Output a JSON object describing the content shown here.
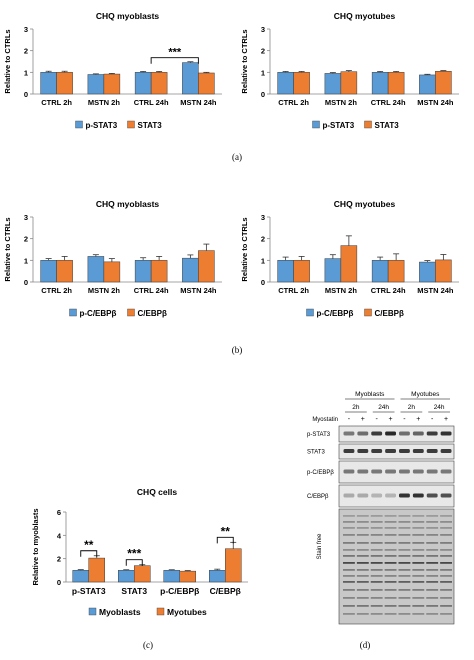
{
  "colors": {
    "blue": "#5B9BD5",
    "orange": "#ED7D31",
    "bar_border": "#3a3a3a",
    "error": "#c55a11"
  },
  "chart_data": [
    {
      "id": "a-left",
      "type": "bar",
      "title": "CHQ myoblasts",
      "ylabel": "Relative to CTRLs",
      "ylim": [
        0,
        3
      ],
      "yticks": [
        0,
        1,
        2,
        3
      ],
      "categories": [
        "CTRL 2h",
        "MSTN 2h",
        "CTRL 24h",
        "MSTN 24h"
      ],
      "series": [
        {
          "name": "p-STAT3",
          "values": [
            1.0,
            0.9,
            1.0,
            1.45
          ],
          "errors": [
            0.05,
            0.03,
            0.04,
            0.04
          ]
        },
        {
          "name": "STAT3",
          "values": [
            1.0,
            0.92,
            1.0,
            0.97
          ],
          "errors": [
            0.05,
            0.03,
            0.04,
            0.03
          ]
        }
      ],
      "annotations": [
        {
          "text": "***",
          "from": 2,
          "to": 3
        }
      ],
      "legend": "bottom"
    },
    {
      "id": "a-right",
      "type": "bar",
      "title": "CHQ myotubes",
      "ylabel": "Relative to CTRLs",
      "ylim": [
        0,
        3
      ],
      "yticks": [
        0,
        1,
        2,
        3
      ],
      "categories": [
        "CTRL 2h",
        "MSTN 2h",
        "CTRL 24h",
        "MSTN 24h"
      ],
      "series": [
        {
          "name": "p-STAT3",
          "values": [
            1.0,
            0.95,
            1.0,
            0.88
          ],
          "errors": [
            0.04,
            0.04,
            0.04,
            0.03
          ]
        },
        {
          "name": "STAT3",
          "values": [
            1.0,
            1.03,
            1.0,
            1.05
          ],
          "errors": [
            0.04,
            0.05,
            0.04,
            0.03
          ]
        }
      ],
      "annotations": [],
      "legend": "bottom"
    },
    {
      "id": "b-left",
      "type": "bar",
      "title": "CHQ myoblasts",
      "ylabel": "Relative to CTRLs",
      "ylim": [
        0,
        3
      ],
      "yticks": [
        0,
        1,
        2,
        3
      ],
      "categories": [
        "CTRL 2h",
        "MSTN 2h",
        "CTRL 24h",
        "MSTN 24h"
      ],
      "series": [
        {
          "name": "p-C/EBPβ",
          "values": [
            1.0,
            1.18,
            1.0,
            1.1
          ],
          "errors": [
            0.08,
            0.08,
            0.12,
            0.15
          ]
        },
        {
          "name": "C/EBPβ",
          "values": [
            1.0,
            0.93,
            1.0,
            1.45
          ],
          "errors": [
            0.18,
            0.15,
            0.18,
            0.3
          ]
        }
      ],
      "annotations": [],
      "legend": "bottom"
    },
    {
      "id": "b-right",
      "type": "bar",
      "title": "CHQ myotubes",
      "ylabel": "Relative to CTRLs",
      "ylim": [
        0,
        3
      ],
      "yticks": [
        0,
        1,
        2,
        3
      ],
      "categories": [
        "CTRL 2h",
        "MSTN 2h",
        "CTRL 24h",
        "MSTN 24h"
      ],
      "series": [
        {
          "name": "p-C/EBPβ",
          "values": [
            1.0,
            1.08,
            1.0,
            0.92
          ],
          "errors": [
            0.15,
            0.18,
            0.15,
            0.07
          ]
        },
        {
          "name": "C/EBPβ",
          "values": [
            1.0,
            1.68,
            1.0,
            1.02
          ],
          "errors": [
            0.18,
            0.45,
            0.3,
            0.25
          ]
        }
      ],
      "annotations": [],
      "legend": "bottom"
    },
    {
      "id": "c",
      "type": "bar",
      "title": "CHQ cells",
      "ylabel": "Relative to myoblasts",
      "ylim": [
        0,
        6
      ],
      "yticks": [
        0,
        2,
        4,
        6
      ],
      "categories": [
        "p-STAT3",
        "STAT3",
        "p-C/EBPβ",
        "C/EBPβ"
      ],
      "series": [
        {
          "name": "Myoblasts",
          "values": [
            1.0,
            1.0,
            1.0,
            1.0
          ],
          "errors": [
            0.06,
            0.05,
            0.05,
            0.1
          ]
        },
        {
          "name": "Myotubes",
          "values": [
            2.05,
            1.4,
            0.93,
            2.85
          ],
          "errors": [
            0.2,
            0.08,
            0.05,
            0.55
          ]
        }
      ],
      "annotations": [
        {
          "text": "**",
          "from": 0,
          "to": 0
        },
        {
          "text": "***",
          "from": 1,
          "to": 1
        },
        {
          "text": "**",
          "from": 3,
          "to": 3
        }
      ],
      "legend": "bottom"
    }
  ],
  "panel_labels": {
    "a": "(a)",
    "b": "(b)",
    "c": "(c)",
    "d": "(d)"
  },
  "blot": {
    "groups": [
      "Myoblasts",
      "Myotubes"
    ],
    "times": [
      "2h",
      "24h",
      "2h",
      "24h"
    ],
    "treatment_label": "Myostatin",
    "treatment_signs": [
      "-",
      "+",
      "-",
      "+",
      "-",
      "+",
      "-",
      "+"
    ],
    "bands": [
      "p-STAT3",
      "STAT3",
      "p-C/EBPβ",
      "C/EBPβ",
      "Stain free"
    ]
  }
}
